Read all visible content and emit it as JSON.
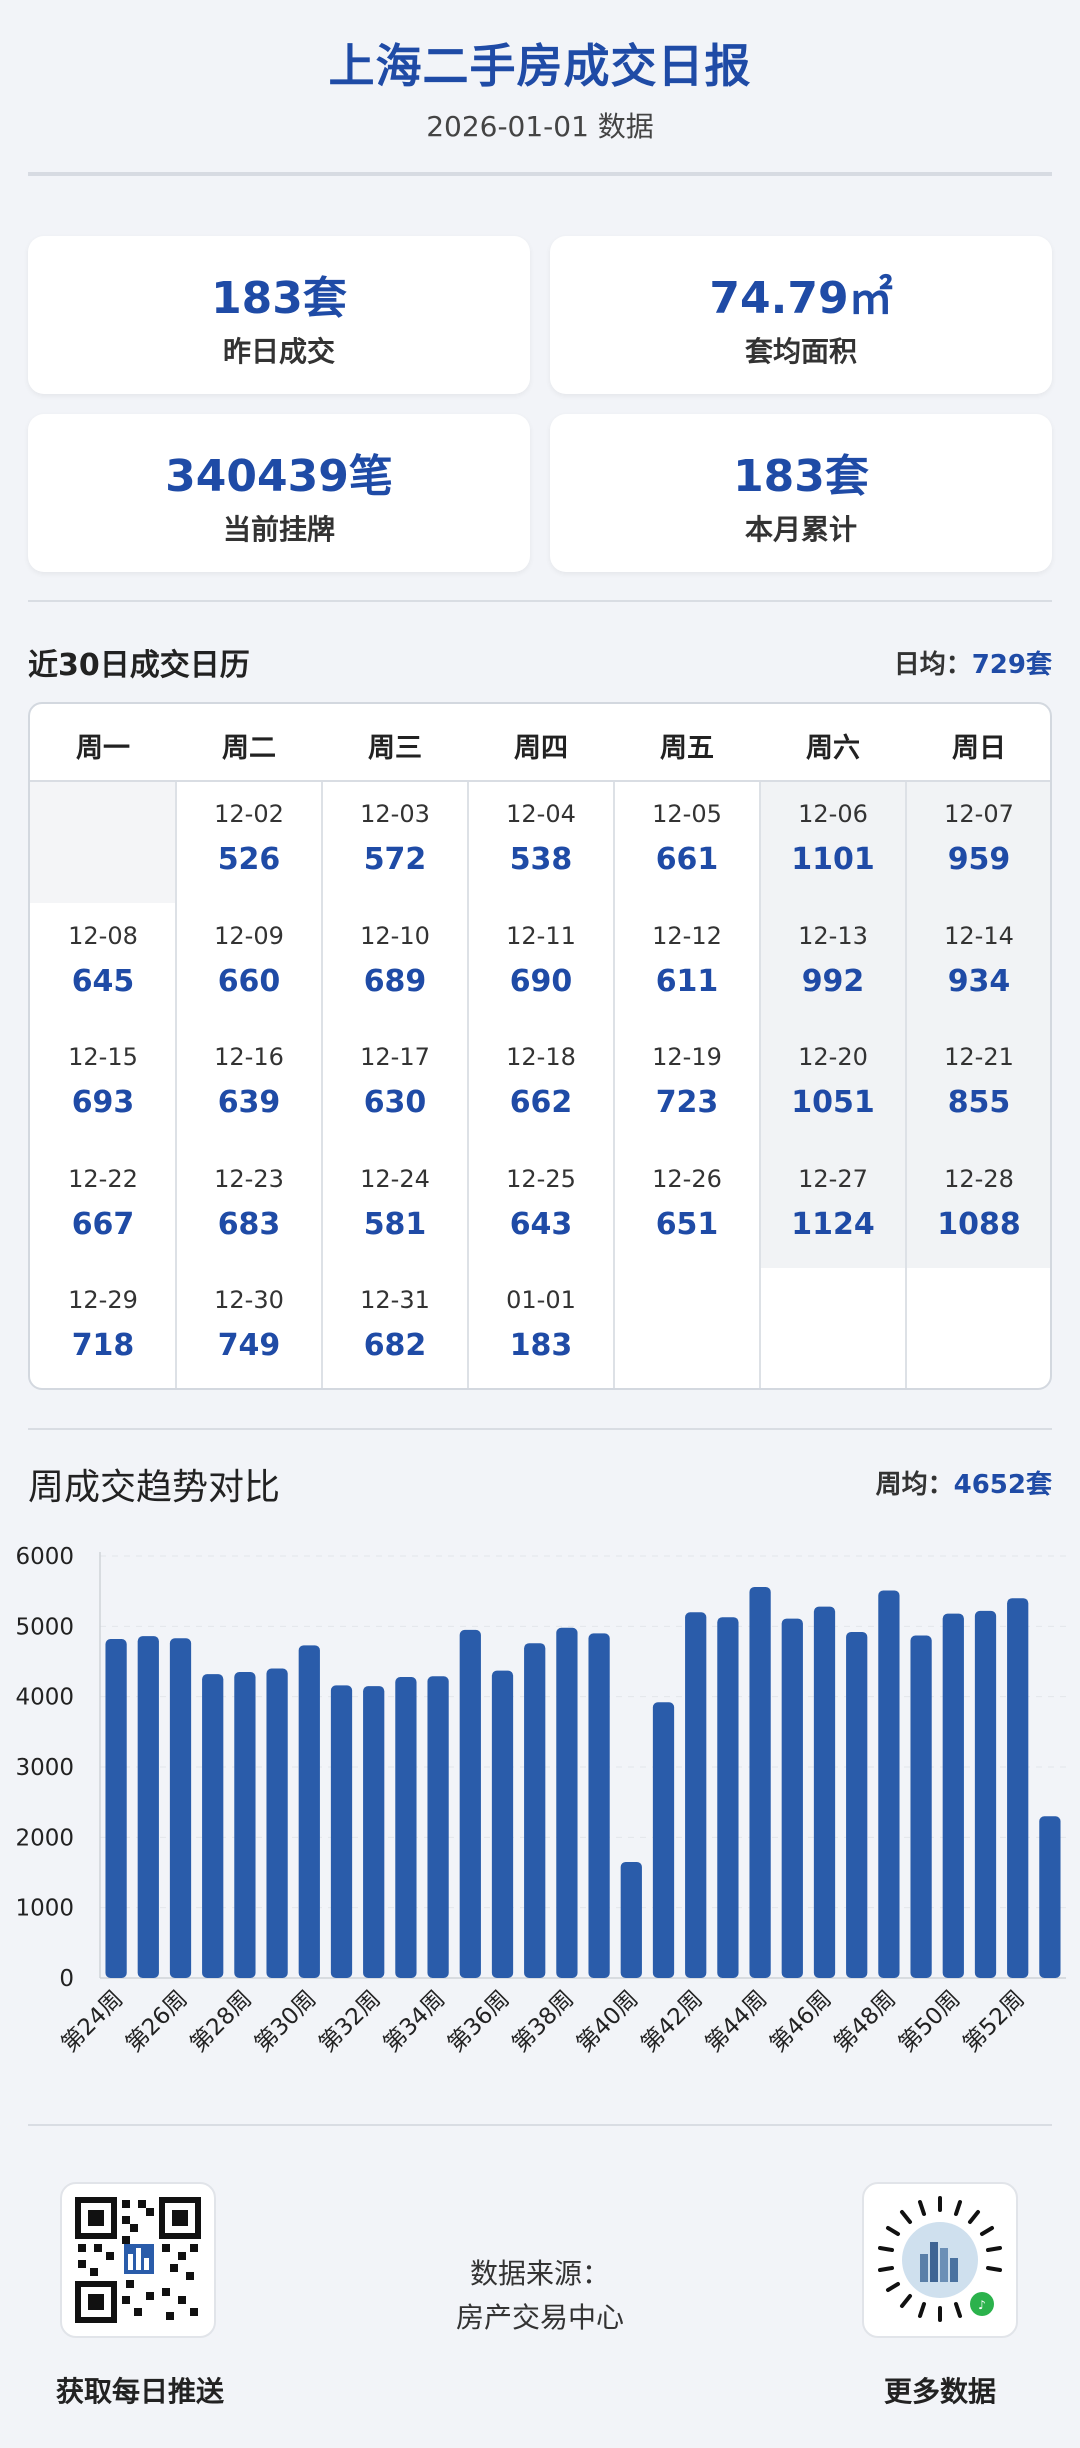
{
  "header": {
    "title": "上海二手房成交日报",
    "subtitle": "2026-01-01 数据"
  },
  "stats": [
    {
      "value": "183套",
      "label": "昨日成交"
    },
    {
      "value": "74.79㎡",
      "label": "套均面积"
    },
    {
      "value": "340439笔",
      "label": "当前挂牌"
    },
    {
      "value": "183套",
      "label": "本月累计"
    }
  ],
  "calendar": {
    "title": "近30日成交日历",
    "avg_label": "日均：",
    "avg_value": "729套",
    "weekdays": [
      "周一",
      "周二",
      "周三",
      "周四",
      "周五",
      "周六",
      "周日"
    ],
    "cells": [
      {
        "date": "",
        "value": ""
      },
      {
        "date": "12-02",
        "value": "526"
      },
      {
        "date": "12-03",
        "value": "572"
      },
      {
        "date": "12-04",
        "value": "538"
      },
      {
        "date": "12-05",
        "value": "661"
      },
      {
        "date": "12-06",
        "value": "1101"
      },
      {
        "date": "12-07",
        "value": "959"
      },
      {
        "date": "12-08",
        "value": "645"
      },
      {
        "date": "12-09",
        "value": "660"
      },
      {
        "date": "12-10",
        "value": "689"
      },
      {
        "date": "12-11",
        "value": "690"
      },
      {
        "date": "12-12",
        "value": "611"
      },
      {
        "date": "12-13",
        "value": "992"
      },
      {
        "date": "12-14",
        "value": "934"
      },
      {
        "date": "12-15",
        "value": "693"
      },
      {
        "date": "12-16",
        "value": "639"
      },
      {
        "date": "12-17",
        "value": "630"
      },
      {
        "date": "12-18",
        "value": "662"
      },
      {
        "date": "12-19",
        "value": "723"
      },
      {
        "date": "12-20",
        "value": "1051"
      },
      {
        "date": "12-21",
        "value": "855"
      },
      {
        "date": "12-22",
        "value": "667"
      },
      {
        "date": "12-23",
        "value": "683"
      },
      {
        "date": "12-24",
        "value": "581"
      },
      {
        "date": "12-25",
        "value": "643"
      },
      {
        "date": "12-26",
        "value": "651"
      },
      {
        "date": "12-27",
        "value": "1124"
      },
      {
        "date": "12-28",
        "value": "1088"
      },
      {
        "date": "12-29",
        "value": "718"
      },
      {
        "date": "12-30",
        "value": "749"
      },
      {
        "date": "12-31",
        "value": "682"
      },
      {
        "date": "01-01",
        "value": "183"
      },
      {
        "date": "",
        "value": ""
      },
      {
        "date": "",
        "value": ""
      },
      {
        "date": "",
        "value": ""
      }
    ]
  },
  "weekly": {
    "title": "周成交趋势对比",
    "avg_label": "周均：",
    "avg_value": "4652套"
  },
  "chart_data": {
    "type": "bar",
    "categories": [
      "第24周",
      "第25周",
      "第26周",
      "第27周",
      "第28周",
      "第29周",
      "第30周",
      "第31周",
      "第32周",
      "第33周",
      "第34周",
      "第35周",
      "第36周",
      "第37周",
      "第38周",
      "第39周",
      "第40周",
      "第41周",
      "第42周",
      "第43周",
      "第44周",
      "第45周",
      "第46周",
      "第47周",
      "第48周",
      "第49周",
      "第50周",
      "第51周",
      "第52周",
      "第53周"
    ],
    "tick_labels": [
      "第24周",
      "第26周",
      "第28周",
      "第30周",
      "第32周",
      "第34周",
      "第36周",
      "第38周",
      "第40周",
      "第42周",
      "第44周",
      "第46周",
      "第48周",
      "第50周",
      "第52周"
    ],
    "values": [
      4820,
      4860,
      4830,
      4320,
      4350,
      4400,
      4730,
      4160,
      4150,
      4280,
      4290,
      4950,
      4370,
      4760,
      4980,
      4900,
      1650,
      3920,
      5200,
      5130,
      5560,
      5110,
      5280,
      4920,
      5510,
      4870,
      5180,
      5220,
      5400,
      2300
    ],
    "yticks": [
      0,
      1000,
      2000,
      3000,
      4000,
      5000,
      6000
    ],
    "ylim": [
      0,
      6000
    ],
    "color": "#2a5caa",
    "grid": true
  },
  "footer": {
    "left_label": "获取每日推送",
    "right_label": "更多数据",
    "source_line1": "数据来源：",
    "source_line2": "房产交易中心"
  }
}
